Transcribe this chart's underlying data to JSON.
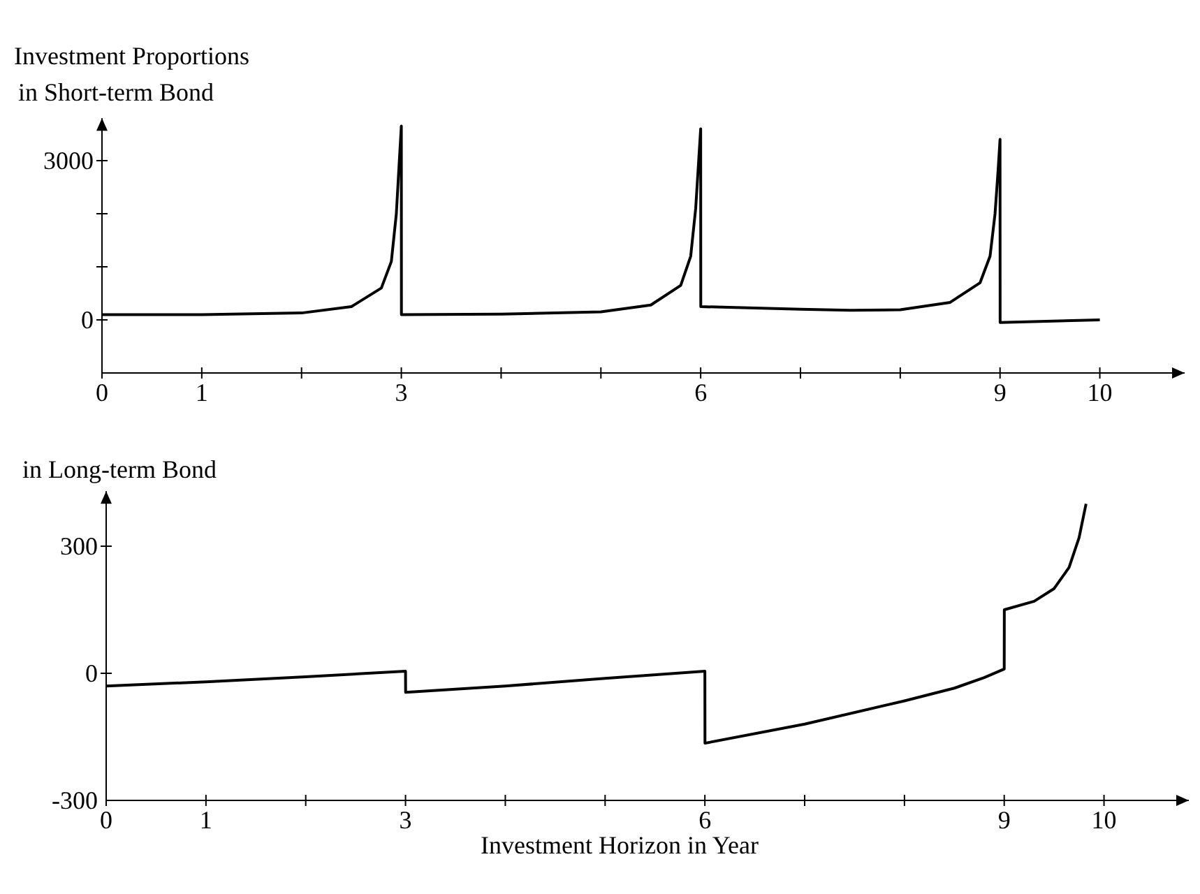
{
  "chart_data": [
    {
      "type": "line",
      "title": "Investment Proportions",
      "ylabel": "in Short-term Bond",
      "x": [
        0,
        1,
        2,
        2.5,
        2.8,
        2.9,
        2.95,
        2.98,
        3,
        3.001,
        4,
        5,
        5.5,
        5.8,
        5.9,
        5.95,
        5.98,
        6,
        6.001,
        7,
        7.5,
        8,
        8.5,
        8.8,
        8.9,
        8.95,
        8.98,
        9,
        9.001,
        10
      ],
      "series": [
        {
          "color": "#000000",
          "values": [
            100,
            100,
            130,
            250,
            600,
            1100,
            2000,
            3000,
            3650,
            100,
            110,
            150,
            280,
            650,
            1200,
            2100,
            3000,
            3600,
            250,
            200,
            180,
            190,
            330,
            700,
            1200,
            2000,
            2800,
            3400,
            -50,
            0
          ]
        }
      ],
      "xlim": [
        0,
        10.85
      ],
      "ylim": [
        -1000,
        3800
      ],
      "xticks": [
        0,
        1,
        {
          "value": 2,
          "label": null
        },
        3,
        {
          "value": 4,
          "label": null
        },
        {
          "value": 5,
          "label": null
        },
        6,
        {
          "value": 7,
          "label": null
        },
        {
          "value": 8,
          "label": null
        },
        9,
        10
      ],
      "yticks": [
        0,
        {
          "value": 1000,
          "label": null
        },
        {
          "value": 2000,
          "label": null
        },
        3000
      ],
      "grid": false,
      "marker": "none",
      "line_style": "solid"
    },
    {
      "type": "line",
      "ylabel": "in Long-term Bond",
      "xlabel": "Investment Horizon in Year",
      "x": [
        0,
        1,
        2,
        3,
        3.001,
        4,
        5,
        6,
        6.001,
        7,
        8,
        8.5,
        8.8,
        9,
        9.001,
        9.3,
        9.5,
        9.65,
        9.75,
        9.82
      ],
      "series": [
        {
          "color": "#000000",
          "values": [
            -30,
            -20,
            -8,
            5,
            -45,
            -30,
            -12,
            5,
            -165,
            -120,
            -65,
            -35,
            -10,
            10,
            150,
            170,
            200,
            250,
            320,
            400
          ]
        }
      ],
      "xlim": [
        0,
        10.85
      ],
      "ylim": [
        -300,
        430
      ],
      "xticks": [
        0,
        1,
        {
          "value": 2,
          "label": null
        },
        3,
        {
          "value": 4,
          "label": null
        },
        {
          "value": 5,
          "label": null
        },
        6,
        {
          "value": 7,
          "label": null
        },
        {
          "value": 8,
          "label": null
        },
        9,
        10
      ],
      "yticks": [
        -300,
        0,
        300
      ],
      "grid": false,
      "marker": "none",
      "line_style": "solid"
    }
  ]
}
